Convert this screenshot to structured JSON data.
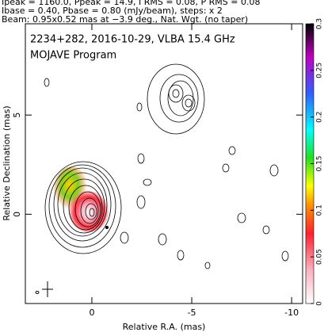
{
  "chart_data": {
    "type": "contour",
    "header": [
      "Ipeak = 1160.0, Ppeak = 14.9, I RMS = 0.08, P RMS = 0.08",
      "Ibase = 0.40, Pbase = 0.80 (mJy/beam), steps: x 2",
      "Beam: 0.95x0.52 mas at −3.9 deg., Nat. Wgt. (no taper)"
    ],
    "title": "2234+282, 2016-10-29, VLBA 15.4 GHz",
    "subtitle": "MOJAVE Program",
    "x_label": "Relative R.A. (mas)",
    "y_label": "Relative Declination (mas)",
    "xlim": [
      3.33,
      -10.55
    ],
    "xticks": [
      0,
      -5,
      -10
    ],
    "ylim": [
      -4.5,
      9.6
    ],
    "yticks": [
      0,
      5
    ],
    "colorbar": {
      "lim": [
        0,
        0.3
      ],
      "ticks": [
        0,
        0.05,
        0.1,
        0.15,
        0.2,
        0.25,
        0.3
      ]
    }
  }
}
